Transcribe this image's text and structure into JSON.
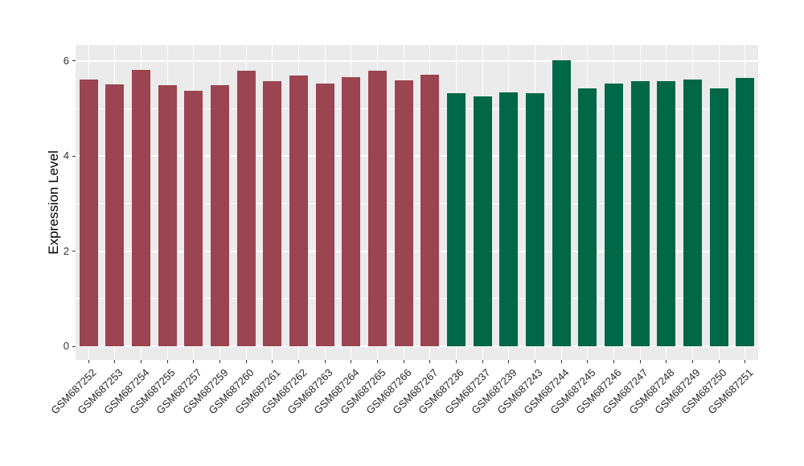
{
  "chart_data": {
    "type": "bar",
    "title": "",
    "xlabel": "",
    "ylabel": "Expression Level",
    "ylim": [
      0,
      6.3
    ],
    "yticks": [
      0,
      2,
      4,
      6
    ],
    "yticks_minor": [
      1,
      3,
      5
    ],
    "grid": true,
    "legend": false,
    "x_label_rotation_deg": 45,
    "groups": [
      {
        "id": "group-red",
        "color": "#9B4452"
      },
      {
        "id": "group-green",
        "color": "#006847"
      }
    ],
    "bars": [
      {
        "label": "GSM687252",
        "value": 5.61,
        "group": 0
      },
      {
        "label": "GSM687253",
        "value": 5.51,
        "group": 0
      },
      {
        "label": "GSM687254",
        "value": 5.81,
        "group": 0
      },
      {
        "label": "GSM687255",
        "value": 5.49,
        "group": 0
      },
      {
        "label": "GSM687257",
        "value": 5.38,
        "group": 0
      },
      {
        "label": "GSM687259",
        "value": 5.49,
        "group": 0
      },
      {
        "label": "GSM687260",
        "value": 5.79,
        "group": 0
      },
      {
        "label": "GSM687261",
        "value": 5.58,
        "group": 0
      },
      {
        "label": "GSM687262",
        "value": 5.69,
        "group": 0
      },
      {
        "label": "GSM687263",
        "value": 5.53,
        "group": 0
      },
      {
        "label": "GSM687264",
        "value": 5.66,
        "group": 0
      },
      {
        "label": "GSM687265",
        "value": 5.8,
        "group": 0
      },
      {
        "label": "GSM687266",
        "value": 5.6,
        "group": 0
      },
      {
        "label": "GSM687267",
        "value": 5.72,
        "group": 0
      },
      {
        "label": "GSM687236",
        "value": 5.33,
        "group": 1
      },
      {
        "label": "GSM687237",
        "value": 5.26,
        "group": 1
      },
      {
        "label": "GSM687239",
        "value": 5.34,
        "group": 1
      },
      {
        "label": "GSM687243",
        "value": 5.33,
        "group": 1
      },
      {
        "label": "GSM687244",
        "value": 6.02,
        "group": 1
      },
      {
        "label": "GSM687245",
        "value": 5.43,
        "group": 1
      },
      {
        "label": "GSM687246",
        "value": 5.53,
        "group": 1
      },
      {
        "label": "GSM687247",
        "value": 5.57,
        "group": 1
      },
      {
        "label": "GSM687248",
        "value": 5.58,
        "group": 1
      },
      {
        "label": "GSM687249",
        "value": 5.61,
        "group": 1
      },
      {
        "label": "GSM687250",
        "value": 5.43,
        "group": 1
      },
      {
        "label": "GSM687251",
        "value": 5.65,
        "group": 1
      }
    ]
  },
  "colors": {
    "panel_background": "#EBEBEB",
    "gridline": "#FFFFFF",
    "bar_red": "#9B4452",
    "bar_green": "#006847",
    "axis_text": "#333333",
    "tick_mark": "#333333"
  }
}
